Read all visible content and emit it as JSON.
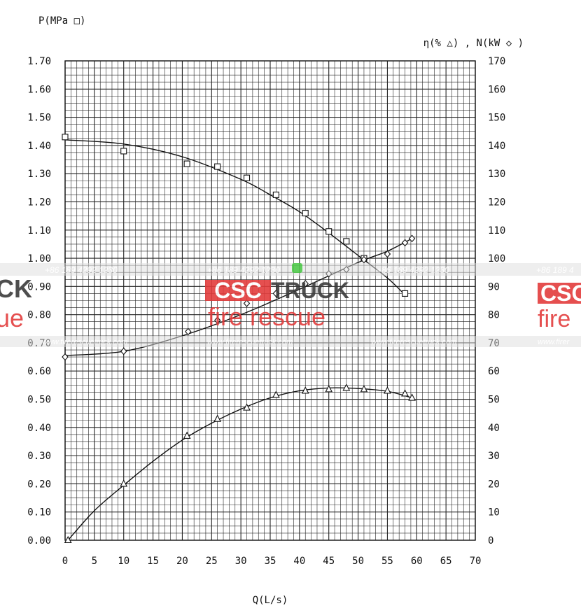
{
  "chart_data": {
    "type": "scatter",
    "title": "",
    "xlabel": "Q(L/s)",
    "ylabel_left": "P(MPa □)",
    "ylabel_right": "η(% △) , N(kW ◇ )",
    "xlim": [
      0,
      70
    ],
    "ylim_left": [
      0,
      1.7
    ],
    "ylim_right": [
      0,
      170
    ],
    "grid": true,
    "x_ticks": [
      "0",
      "5",
      "10",
      "15",
      "20",
      "25",
      "30",
      "35",
      "40",
      "45",
      "50",
      "55",
      "60",
      "65",
      "70"
    ],
    "y_left_ticks": [
      "0.00",
      "0.10",
      "0.20",
      "0.30",
      "0.40",
      "0.50",
      "0.60",
      "0.70",
      "0.80",
      "0.90",
      "1.00",
      "1.10",
      "1.20",
      "1.30",
      "1.40",
      "1.50",
      "1.60",
      "1.70"
    ],
    "y_right_ticks": [
      "0",
      "10",
      "20",
      "30",
      "40",
      "50",
      "60",
      "70",
      "80",
      "90",
      "100",
      "110",
      "120",
      "130",
      "140",
      "150",
      "160",
      "170"
    ],
    "series": [
      {
        "marker": "square",
        "axis": "left",
        "x": [
          0,
          10,
          20.8,
          26,
          31,
          36,
          41,
          45,
          48,
          51,
          58
        ],
        "y": [
          1.43,
          1.38,
          1.335,
          1.325,
          1.285,
          1.225,
          1.16,
          1.095,
          1.06,
          1.0,
          0.875
        ],
        "fit": [
          [
            0,
            1.42
          ],
          [
            10,
            1.405
          ],
          [
            20,
            1.36
          ],
          [
            30,
            1.28
          ],
          [
            35,
            1.225
          ],
          [
            40,
            1.165
          ],
          [
            45,
            1.09
          ],
          [
            50,
            1.01
          ],
          [
            55,
            0.93
          ],
          [
            58,
            0.87
          ]
        ]
      },
      {
        "marker": "diamond",
        "axis": "right",
        "x": [
          0,
          10,
          21,
          26,
          31,
          36,
          41,
          45,
          48,
          51,
          55,
          58,
          59.2
        ],
        "y": [
          65,
          67,
          74,
          78,
          84,
          87.5,
          91,
          94.5,
          96,
          99.5,
          101.5,
          105.5,
          107
        ],
        "fit": [
          [
            0,
            65.5
          ],
          [
            10,
            67
          ],
          [
            20,
            72.5
          ],
          [
            30,
            80
          ],
          [
            40,
            89
          ],
          [
            50,
            98.5
          ],
          [
            55,
            102.5
          ],
          [
            59.2,
            107
          ]
        ]
      },
      {
        "marker": "triangle",
        "axis": "right",
        "x": [
          0.5,
          10,
          20.8,
          26,
          31,
          36,
          41,
          45,
          48,
          51,
          55,
          58,
          59.2
        ],
        "y": [
          0,
          20,
          37,
          43,
          47,
          51.5,
          53,
          53.5,
          54,
          53.5,
          53,
          52,
          50.5
        ],
        "fit": [
          [
            0.5,
            0
          ],
          [
            5,
            10.5
          ],
          [
            10,
            19.5
          ],
          [
            15,
            28
          ],
          [
            20,
            35.5
          ],
          [
            25,
            41.5
          ],
          [
            30,
            46.5
          ],
          [
            35,
            50.5
          ],
          [
            40,
            53
          ],
          [
            45,
            54
          ],
          [
            50,
            53.8
          ],
          [
            55,
            52.8
          ],
          [
            59.2,
            50.5
          ]
        ]
      }
    ]
  },
  "watermark": {
    "phone": "+86 189 4292 1230",
    "phone_partial": "+86 189 4",
    "brand_csc": "CSC",
    "brand_truck": "TRUCK",
    "brand_left_fragment": "CK",
    "tagline": "fire rescue",
    "tagline_left_fragment": "ue",
    "tagline_right_fragment": "fire",
    "url": "www.firerescuetruck.com",
    "url_partial": "www.firer",
    "colors": {
      "red": "#e23b3b",
      "dark": "#3a3a3a",
      "band": "#dddddd",
      "chat_green": "#4fc94a"
    }
  }
}
